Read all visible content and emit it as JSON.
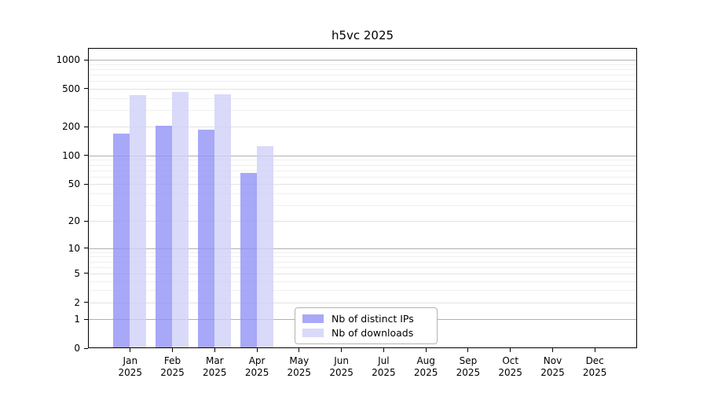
{
  "chart_data": {
    "type": "bar",
    "title": "h5vc 2025",
    "categories": [
      "Jan",
      "Feb",
      "Mar",
      "Apr",
      "May",
      "Jun",
      "Jul",
      "Aug",
      "Sep",
      "Oct",
      "Nov",
      "Dec"
    ],
    "category_year": "2025",
    "series": [
      {
        "name": "Nb of distinct IPs",
        "color": "#a8a8f8",
        "values": [
          170,
          205,
          185,
          65,
          0,
          0,
          0,
          0,
          0,
          0,
          0,
          0
        ]
      },
      {
        "name": "Nb of downloads",
        "color": "#d9d9f9",
        "values": [
          430,
          460,
          440,
          125,
          0,
          0,
          0,
          0,
          0,
          0,
          0,
          0
        ]
      }
    ],
    "xlabel": "",
    "ylabel": "",
    "y_ticks": [
      0,
      1,
      2,
      5,
      10,
      20,
      50,
      100,
      200,
      500,
      1000
    ],
    "y_scale": "log10(1+x)",
    "ylim": [
      0,
      1200
    ],
    "grid": true,
    "grid_colors": {
      "major": "#b0b0b0",
      "mid": "#e2e2e2",
      "minor": "#efefef"
    },
    "background": "#ffffff",
    "text_color": "#000000",
    "legend_position": "lower center inside plot"
  }
}
